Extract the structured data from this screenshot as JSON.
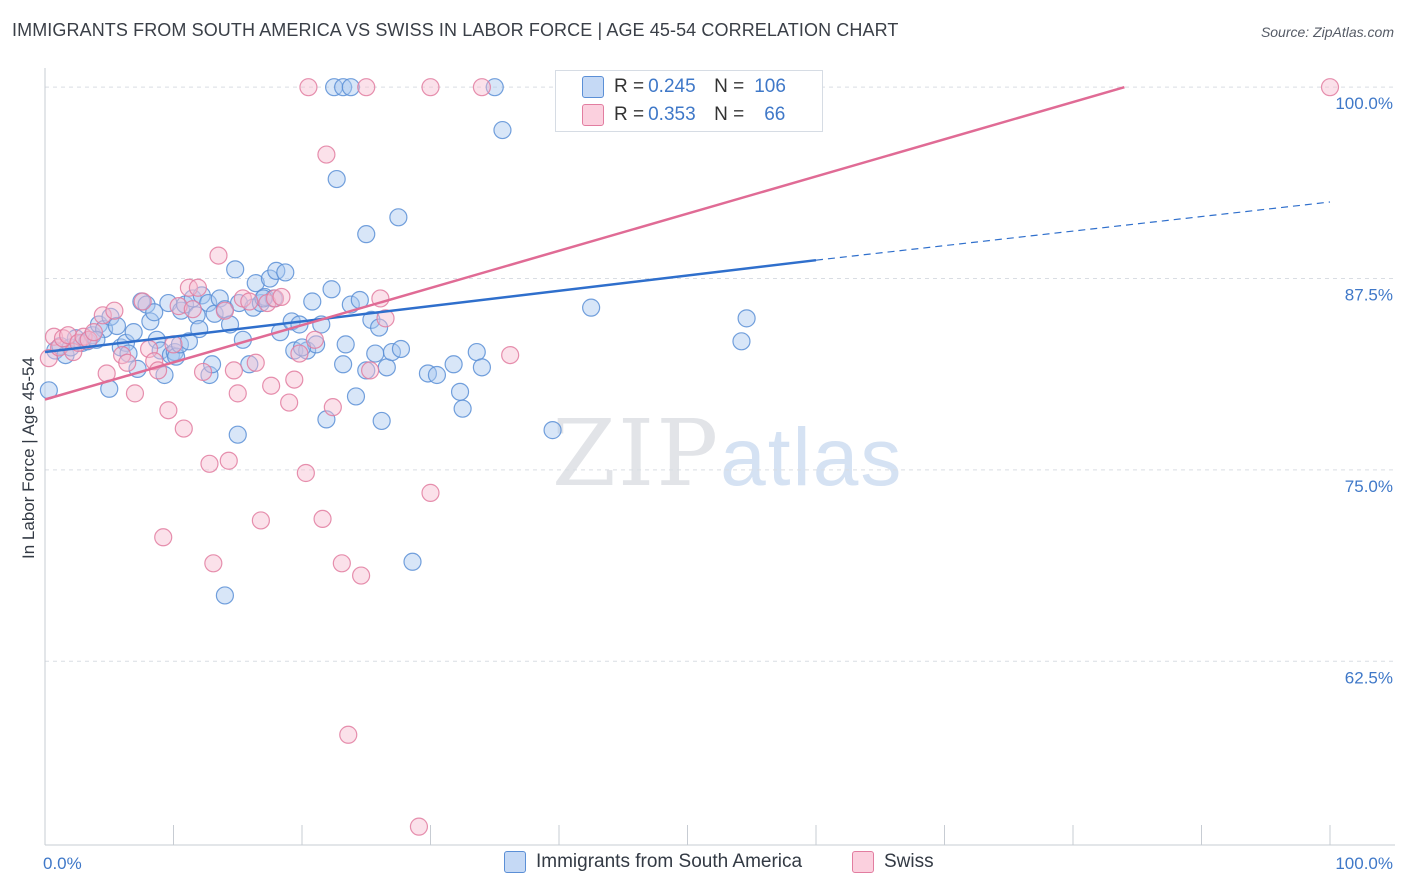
{
  "title": "IMMIGRANTS FROM SOUTH AMERICA VS SWISS IN LABOR FORCE | AGE 45-54 CORRELATION CHART",
  "source": "Source: ZipAtlas.com",
  "watermark": {
    "zip": "ZIP",
    "atlas": "atlas"
  },
  "legend": {
    "rows": [
      {
        "r_label": "R =",
        "r_value": "0.245",
        "n_label": "N =",
        "n_value": "106",
        "color": "#a9c7f0",
        "border": "#5b8fd6"
      },
      {
        "r_label": "R =",
        "r_value": "0.353",
        "n_label": "N =",
        "n_value": "66",
        "color": "#f7bcd0",
        "border": "#e27da0"
      }
    ]
  },
  "bottom_legend": [
    "Immigrants from South America",
    "Swiss"
  ],
  "chart_data": {
    "type": "scatter",
    "title": "IMMIGRANTS FROM SOUTH AMERICA VS SWISS IN LABOR FORCE | AGE 45-54 CORRELATION CHART",
    "xlabel": "",
    "ylabel": "In Labor Force | Age 45-54",
    "xlim": [
      0,
      100
    ],
    "ylim": [
      50.5,
      100.6
    ],
    "x_tick_labels": [
      "0.0%",
      "100.0%"
    ],
    "y_ticks": [
      62.5,
      75.0,
      87.5,
      100.0
    ],
    "y_tick_labels": [
      "62.5%",
      "75.0%",
      "87.5%",
      "100.0%"
    ],
    "grid": true,
    "legend_position": "top-center",
    "series": [
      {
        "name": "Immigrants from South America",
        "color": "#5b8fd6",
        "fill": "#a9c7f0",
        "R": 0.245,
        "N": 106,
        "trend": {
          "x0": 0,
          "y0": 82.7,
          "x1": 60,
          "y1": 88.7,
          "dashed_to_x": 100,
          "dashed_to_y": 92.5
        },
        "points": [
          [
            0.3,
            80.2
          ],
          [
            0.8,
            82.8
          ],
          [
            1.2,
            83.1
          ],
          [
            1.6,
            82.5
          ],
          [
            2.0,
            83.0
          ],
          [
            2.4,
            83.6
          ],
          [
            2.9,
            83.3
          ],
          [
            3.3,
            83.4
          ],
          [
            3.7,
            83.8
          ],
          [
            4.2,
            84.5
          ],
          [
            4.6,
            84.2
          ],
          [
            5.1,
            85.0
          ],
          [
            5.0,
            80.3
          ],
          [
            5.6,
            84.4
          ],
          [
            5.9,
            83.0
          ],
          [
            6.3,
            83.3
          ],
          [
            6.5,
            82.6
          ],
          [
            6.9,
            84.0
          ],
          [
            7.2,
            81.6
          ],
          [
            7.5,
            86.0
          ],
          [
            7.9,
            85.8
          ],
          [
            8.2,
            84.7
          ],
          [
            8.5,
            85.3
          ],
          [
            8.7,
            83.5
          ],
          [
            9.0,
            82.8
          ],
          [
            9.3,
            81.2
          ],
          [
            9.6,
            85.9
          ],
          [
            9.8,
            82.5
          ],
          [
            10.1,
            82.7
          ],
          [
            10.2,
            82.4
          ],
          [
            10.5,
            83.2
          ],
          [
            10.6,
            85.4
          ],
          [
            10.9,
            85.8
          ],
          [
            11.2,
            83.4
          ],
          [
            11.5,
            86.2
          ],
          [
            11.8,
            85.1
          ],
          [
            12.2,
            86.4
          ],
          [
            12.7,
            85.9
          ],
          [
            12.8,
            81.2
          ],
          [
            13.0,
            81.9
          ],
          [
            13.2,
            85.2
          ],
          [
            13.6,
            86.2
          ],
          [
            14.0,
            85.5
          ],
          [
            14.4,
            84.5
          ],
          [
            14.8,
            88.1
          ],
          [
            15.0,
            77.3
          ],
          [
            15.1,
            85.9
          ],
          [
            15.4,
            83.5
          ],
          [
            15.9,
            81.9
          ],
          [
            16.2,
            85.6
          ],
          [
            16.4,
            87.2
          ],
          [
            16.8,
            85.9
          ],
          [
            17.1,
            86.3
          ],
          [
            17.5,
            87.5
          ],
          [
            17.8,
            86.2
          ],
          [
            18.0,
            88.0
          ],
          [
            18.3,
            84.0
          ],
          [
            18.7,
            87.9
          ],
          [
            19.2,
            84.7
          ],
          [
            19.4,
            82.8
          ],
          [
            19.8,
            84.5
          ],
          [
            20.4,
            82.8
          ],
          [
            20.8,
            86.0
          ],
          [
            21.1,
            83.2
          ],
          [
            21.5,
            84.5
          ],
          [
            21.9,
            78.3
          ],
          [
            22.3,
            86.8
          ],
          [
            22.7,
            94.0
          ],
          [
            23.2,
            81.9
          ],
          [
            23.4,
            83.2
          ],
          [
            23.8,
            85.8
          ],
          [
            24.2,
            79.8
          ],
          [
            24.5,
            86.1
          ],
          [
            25.0,
            81.5
          ],
          [
            25.4,
            84.8
          ],
          [
            25.7,
            82.6
          ],
          [
            26.0,
            84.3
          ],
          [
            26.2,
            78.2
          ],
          [
            26.6,
            81.7
          ],
          [
            27.0,
            82.7
          ],
          [
            27.5,
            91.5
          ],
          [
            27.7,
            82.9
          ],
          [
            28.6,
            69.0
          ],
          [
            29.8,
            81.3
          ],
          [
            30.5,
            81.2
          ],
          [
            31.8,
            81.9
          ],
          [
            32.3,
            80.1
          ],
          [
            32.5,
            79.0
          ],
          [
            33.6,
            82.7
          ],
          [
            34.0,
            81.7
          ],
          [
            22.5,
            100.0
          ],
          [
            23.2,
            100.0
          ],
          [
            23.8,
            100.0
          ],
          [
            35.6,
            97.2
          ],
          [
            35.0,
            100.0
          ],
          [
            39.5,
            77.6
          ],
          [
            42.5,
            85.6
          ],
          [
            54.2,
            83.4
          ],
          [
            54.6,
            84.9
          ],
          [
            59.6,
            100.0
          ],
          [
            14.0,
            66.8
          ],
          [
            25.0,
            90.4
          ],
          [
            17.0,
            86.2
          ],
          [
            12.0,
            84.2
          ],
          [
            4.0,
            83.5
          ],
          [
            20.0,
            83.0
          ]
        ]
      },
      {
        "name": "Swiss",
        "color": "#e27da0",
        "fill": "#f7bcd0",
        "R": 0.353,
        "N": 66,
        "trend": {
          "x0": 0,
          "y0": 79.6,
          "x1": 84,
          "y1": 100.0
        },
        "points": [
          [
            0.3,
            82.3
          ],
          [
            0.7,
            83.7
          ],
          [
            1.1,
            83.0
          ],
          [
            1.4,
            83.6
          ],
          [
            1.8,
            83.8
          ],
          [
            2.2,
            82.7
          ],
          [
            2.6,
            83.3
          ],
          [
            3.0,
            83.7
          ],
          [
            3.4,
            83.5
          ],
          [
            3.8,
            84.0
          ],
          [
            4.5,
            85.1
          ],
          [
            4.8,
            81.3
          ],
          [
            5.4,
            85.4
          ],
          [
            6.0,
            82.5
          ],
          [
            6.4,
            82.0
          ],
          [
            7.0,
            80.0
          ],
          [
            7.6,
            86.0
          ],
          [
            8.1,
            82.9
          ],
          [
            8.5,
            82.1
          ],
          [
            8.8,
            81.5
          ],
          [
            9.2,
            70.6
          ],
          [
            9.6,
            78.9
          ],
          [
            10.0,
            83.2
          ],
          [
            10.4,
            85.7
          ],
          [
            10.8,
            77.7
          ],
          [
            11.2,
            86.9
          ],
          [
            11.5,
            85.5
          ],
          [
            11.9,
            86.9
          ],
          [
            12.3,
            81.4
          ],
          [
            12.8,
            75.4
          ],
          [
            13.1,
            68.9
          ],
          [
            13.5,
            89.0
          ],
          [
            14.0,
            85.4
          ],
          [
            14.3,
            75.6
          ],
          [
            14.7,
            81.5
          ],
          [
            15.0,
            80.0
          ],
          [
            15.4,
            86.2
          ],
          [
            15.9,
            86.0
          ],
          [
            16.4,
            82.0
          ],
          [
            16.8,
            71.7
          ],
          [
            17.3,
            85.9
          ],
          [
            17.6,
            80.5
          ],
          [
            17.9,
            86.2
          ],
          [
            18.4,
            86.3
          ],
          [
            19.0,
            79.4
          ],
          [
            19.4,
            80.9
          ],
          [
            19.8,
            82.6
          ],
          [
            20.3,
            74.8
          ],
          [
            21.0,
            83.5
          ],
          [
            21.6,
            71.8
          ],
          [
            21.9,
            95.6
          ],
          [
            22.4,
            79.1
          ],
          [
            23.1,
            68.9
          ],
          [
            23.6,
            57.7
          ],
          [
            24.6,
            68.1
          ],
          [
            25.3,
            81.5
          ],
          [
            26.1,
            86.2
          ],
          [
            26.5,
            84.9
          ],
          [
            29.1,
            51.7
          ],
          [
            30.0,
            73.5
          ],
          [
            36.2,
            82.5
          ],
          [
            20.5,
            100.0
          ],
          [
            25.0,
            100.0
          ],
          [
            30.0,
            100.0
          ],
          [
            34.0,
            100.0
          ],
          [
            100.0,
            100.0
          ]
        ]
      }
    ]
  }
}
